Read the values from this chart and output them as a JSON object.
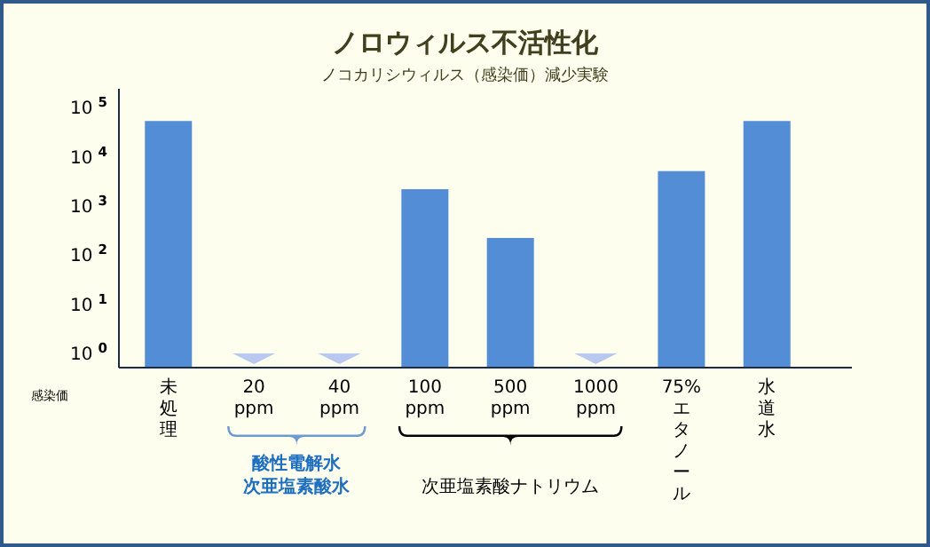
{
  "chart_data": {
    "type": "bar",
    "title": "ノロウィルス不活性化",
    "subtitle": "ノコカリシウィルス（感染価）減少実験",
    "ylabel": "感染価",
    "categories": [
      "未処理",
      "20 ppm",
      "40 ppm",
      "100 ppm",
      "500 ppm",
      "1000 ppm",
      "75% エタノール",
      "水道水"
    ],
    "values": [
      51000,
      null,
      null,
      2100,
      215,
      null,
      4900,
      51000
    ],
    "color": "#528dd6",
    "log": true,
    "ylim": [
      0.5,
      230000
    ],
    "yticks": [
      {
        "value": 1,
        "label": "10$^{0}$"
      },
      {
        "value": 10,
        "label": "10$^{1}$"
      },
      {
        "value": 100,
        "label": "10$^{2}$"
      },
      {
        "value": 1000,
        "label": "10$^{3}$"
      },
      {
        "value": 10000,
        "label": "10$^{4}$"
      },
      {
        "value": 100000,
        "label": "10$^{5}$"
      }
    ],
    "annotations": [
      "酸性電解水",
      "次亜塩素酸水",
      "次亜塩素酸ナトリウム"
    ],
    "grid": false
  }
}
